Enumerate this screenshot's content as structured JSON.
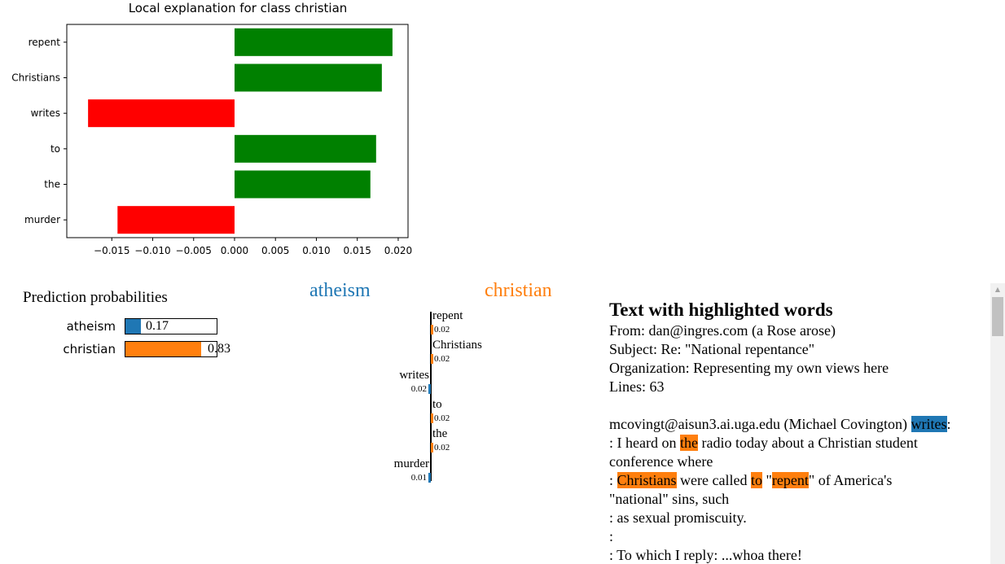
{
  "colors": {
    "positive": "#008000",
    "negative": "#ff0000",
    "atheism": "#1f77b4",
    "christian": "#ff7f0e"
  },
  "chart_data": {
    "type": "bar",
    "orientation": "horizontal",
    "title": "Local explanation for class christian",
    "categories": [
      "repent",
      "Christians",
      "writes",
      "to",
      "the",
      "murder"
    ],
    "values": [
      0.0193,
      0.018,
      -0.0179,
      0.0173,
      0.0166,
      -0.0143
    ],
    "xlim": [
      -0.0205,
      0.0212
    ],
    "xticks": [
      -0.015,
      -0.01,
      -0.005,
      0.0,
      0.005,
      0.01,
      0.015,
      0.02
    ],
    "xtick_labels": [
      "−0.015",
      "−0.010",
      "−0.005",
      "0.000",
      "0.005",
      "0.010",
      "0.015",
      "0.020"
    ],
    "grid": false
  },
  "prediction": {
    "title": "Prediction probabilities",
    "classes": [
      {
        "label": "atheism",
        "value": 0.17,
        "display": "0.17",
        "color": "#1f77b4"
      },
      {
        "label": "christian",
        "value": 0.83,
        "display": "0.83",
        "color": "#ff7f0e"
      }
    ]
  },
  "class_headers": {
    "negative": "atheism",
    "positive": "christian"
  },
  "features": [
    {
      "word": "repent",
      "value": "0.02",
      "side": "positive",
      "weight": 0.02
    },
    {
      "word": "Christians",
      "value": "0.02",
      "side": "positive",
      "weight": 0.02
    },
    {
      "word": "writes",
      "value": "0.02",
      "side": "negative",
      "weight": 0.02
    },
    {
      "word": "to",
      "value": "0.02",
      "side": "positive",
      "weight": 0.02
    },
    {
      "word": "the",
      "value": "0.02",
      "side": "positive",
      "weight": 0.02
    },
    {
      "word": "murder",
      "value": "0.01",
      "side": "negative",
      "weight": 0.01
    }
  ],
  "text_panel": {
    "title": "Text with highlighted words",
    "lines": [
      [
        {
          "t": "From: dan@ingres.com (a Rose arose)"
        }
      ],
      [
        {
          "t": "Subject: Re: \"National repentance\""
        }
      ],
      [
        {
          "t": "Organization: Representing my own views here"
        }
      ],
      [
        {
          "t": "Lines: 63"
        }
      ],
      [],
      [
        {
          "t": "mcovingt@aisun3.ai.uga.edu (Michael Covington) "
        },
        {
          "t": "writes",
          "hl": "atheism"
        },
        {
          "t": ":"
        }
      ],
      [
        {
          "t": ": I heard on "
        },
        {
          "t": "the",
          "hl": "christian"
        },
        {
          "t": " radio today about a Christian student"
        }
      ],
      [
        {
          "t": "conference where"
        }
      ],
      [
        {
          "t": ": "
        },
        {
          "t": "Christians",
          "hl": "christian"
        },
        {
          "t": " were called "
        },
        {
          "t": "to",
          "hl": "christian"
        },
        {
          "t": " \""
        },
        {
          "t": "repent",
          "hl": "christian"
        },
        {
          "t": "\" of America's"
        }
      ],
      [
        {
          "t": "\"national\" sins, such"
        }
      ],
      [
        {
          "t": ": as sexual promiscuity."
        }
      ],
      [
        {
          "t": ":"
        }
      ],
      [
        {
          "t": ": To which I reply: ...whoa there!"
        }
      ]
    ]
  }
}
